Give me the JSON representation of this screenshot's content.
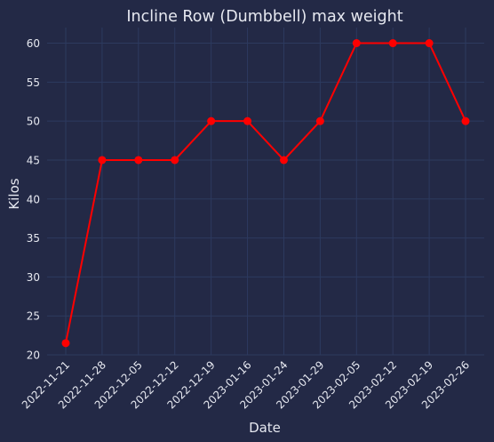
{
  "chart_data": {
    "type": "line",
    "title": "Incline Row (Dumbbell) max weight",
    "xlabel": "Date",
    "ylabel": "Kilos",
    "categories": [
      "2022-11-21",
      "2022-11-28",
      "2022-12-05",
      "2022-12-12",
      "2022-12-19",
      "2023-01-16",
      "2023-01-24",
      "2023-01-29",
      "2023-02-05",
      "2023-02-12",
      "2023-02-19",
      "2023-02-26"
    ],
    "series": [
      {
        "values": [
          21.5,
          45,
          45,
          45,
          50,
          50,
          45,
          50,
          60,
          60,
          60,
          50
        ],
        "color": "#ff0000"
      }
    ],
    "ylim": [
      20,
      62
    ],
    "yticks": [
      20,
      25,
      30,
      35,
      40,
      45,
      50,
      55,
      60
    ],
    "grid": true,
    "colors": {
      "background": "#232946",
      "grid": "#2d3a5f",
      "text": "#e6e8f0",
      "line": "#ff0000"
    }
  }
}
